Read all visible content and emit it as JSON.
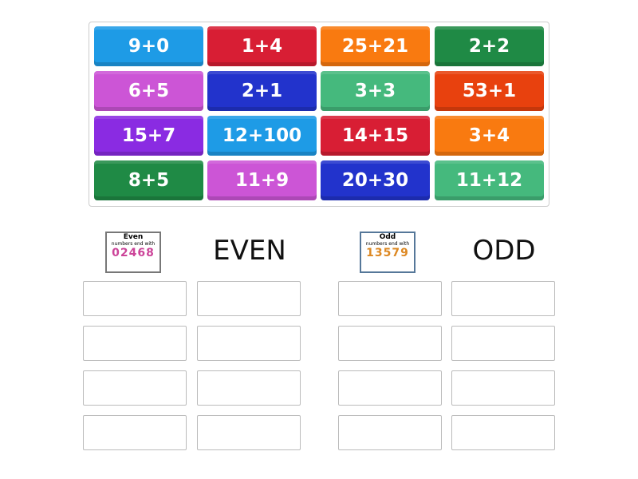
{
  "tiles": [
    {
      "label": "9+0",
      "color": "#1e9be6"
    },
    {
      "label": "1+4",
      "color": "#d81e34"
    },
    {
      "label": "25+21",
      "color": "#f97a10"
    },
    {
      "label": "2+2",
      "color": "#1f8a45"
    },
    {
      "label": "6+5",
      "color": "#cc55d6"
    },
    {
      "label": "2+1",
      "color": "#2233cc"
    },
    {
      "label": "3+3",
      "color": "#45b97d"
    },
    {
      "label": "53+1",
      "color": "#e8410e"
    },
    {
      "label": "15+7",
      "color": "#8a2be2"
    },
    {
      "label": "12+100",
      "color": "#1e9be6"
    },
    {
      "label": "14+15",
      "color": "#d81e34"
    },
    {
      "label": "3+4",
      "color": "#f97a10"
    },
    {
      "label": "8+5",
      "color": "#1f8a45"
    },
    {
      "label": "11+9",
      "color": "#cc55d6"
    },
    {
      "label": "20+30",
      "color": "#2233cc"
    },
    {
      "label": "11+12",
      "color": "#45b97d"
    }
  ],
  "groups": [
    {
      "title": "EVEN",
      "image": {
        "heading": "Even",
        "sub": "numbers end with",
        "digits": "02468"
      }
    },
    {
      "title": "ODD",
      "image": {
        "heading": "Odd",
        "sub": "numbers end with",
        "digits": "13579"
      }
    }
  ]
}
